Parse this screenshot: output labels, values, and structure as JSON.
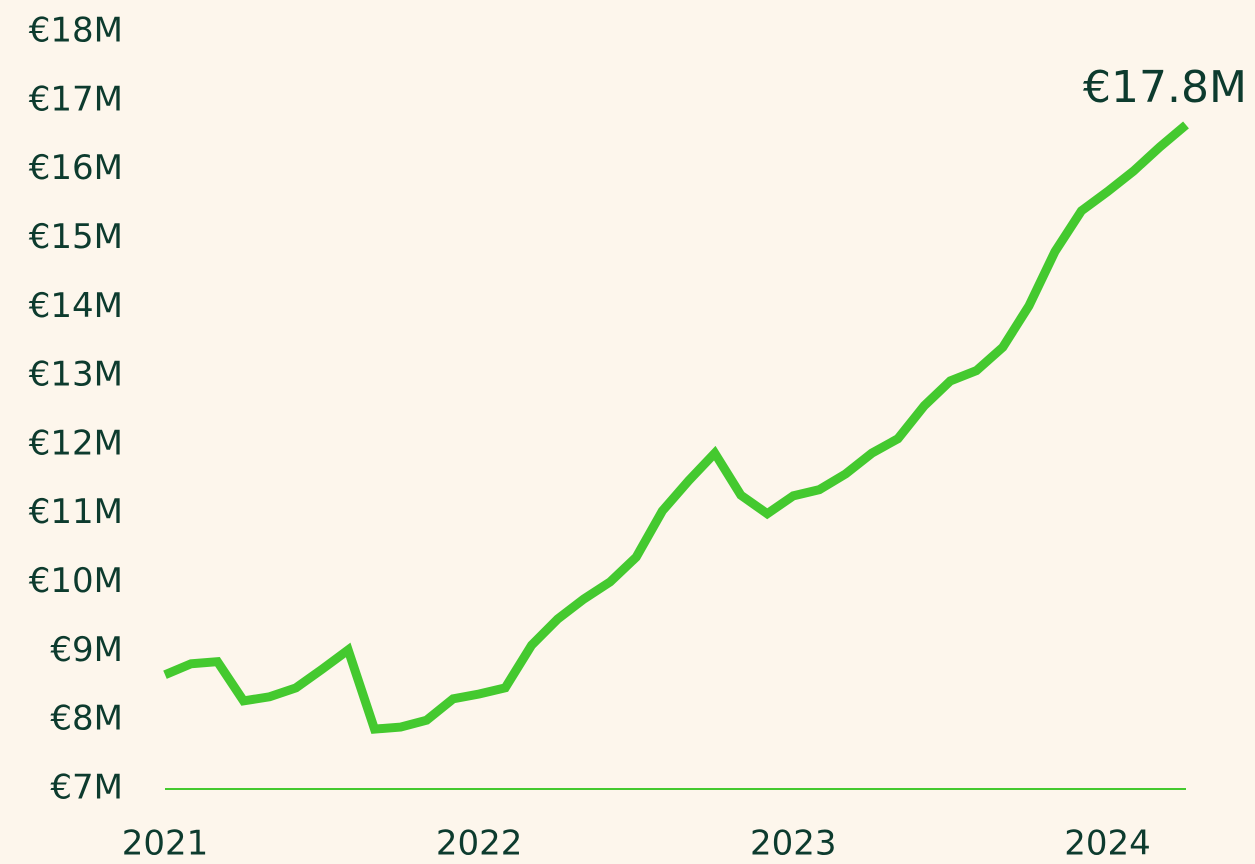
{
  "chart_data": {
    "type": "line",
    "annotation": "€17.8M",
    "x": [
      2021,
      2021.083,
      2021.167,
      2021.25,
      2021.333,
      2021.417,
      2021.5,
      2021.583,
      2021.667,
      2021.75,
      2021.833,
      2021.917,
      2022,
      2022.083,
      2022.167,
      2022.25,
      2022.333,
      2022.417,
      2022.5,
      2022.583,
      2022.667,
      2022.75,
      2022.833,
      2022.917,
      2023,
      2023.083,
      2023.167,
      2023.25,
      2023.333,
      2023.417,
      2023.5,
      2023.583,
      2023.667,
      2023.75,
      2023.833,
      2023.917,
      2024,
      2024.083,
      2024.167,
      2024.25
    ],
    "series": [
      {
        "color": "#44c92f",
        "values": [
          8.66,
          8.82,
          8.85,
          8.28,
          8.34,
          8.47,
          8.74,
          9.02,
          7.87,
          7.9,
          8.0,
          8.31,
          8.38,
          8.47,
          9.09,
          9.47,
          9.76,
          10.01,
          10.37,
          11.04,
          11.48,
          11.88,
          11.27,
          11.0,
          11.26,
          11.35,
          11.58,
          11.88,
          12.09,
          12.57,
          12.93,
          13.08,
          13.42,
          14.02,
          14.81,
          15.4,
          15.68,
          15.98,
          16.33,
          16.65
        ]
      }
    ],
    "xlim": [
      2021,
      2024.25
    ],
    "xticks": [
      2021,
      2022,
      2023,
      2024
    ],
    "ylim": [
      7,
      18
    ],
    "yticks": [
      {
        "value": 7,
        "label": "€7M"
      },
      {
        "value": 8,
        "label": "€8M"
      },
      {
        "value": 9,
        "label": "€9M"
      },
      {
        "value": 10,
        "label": "€10M"
      },
      {
        "value": 11,
        "label": "€11M"
      },
      {
        "value": 12,
        "label": "€12M"
      },
      {
        "value": 13,
        "label": "€13M"
      },
      {
        "value": 14,
        "label": "€14M"
      },
      {
        "value": 15,
        "label": "€15M"
      },
      {
        "value": 16,
        "label": "€16M"
      },
      {
        "value": 17,
        "label": "€17M"
      },
      {
        "value": 18,
        "label": "€18M"
      }
    ],
    "axis_color": "#44c92f"
  }
}
